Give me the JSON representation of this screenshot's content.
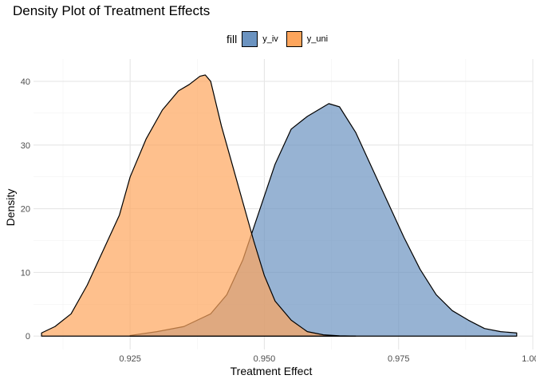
{
  "chart_data": {
    "type": "area",
    "title": "Density Plot of Treatment Effects",
    "xlabel": "Treatment Effect",
    "ylabel": "Density",
    "xlim": [
      0.907,
      1.0
    ],
    "ylim": [
      -2.1,
      43.5
    ],
    "x_ticks": [
      0.925,
      0.95,
      0.975,
      1.0
    ],
    "x_tick_labels": [
      "0.925",
      "0.950",
      "0.975",
      "1.000"
    ],
    "y_ticks": [
      0,
      10,
      20,
      30,
      40
    ],
    "y_tick_labels": [
      "0",
      "10",
      "20",
      "30",
      "40"
    ],
    "legend": {
      "title": "fill",
      "position": "top"
    },
    "grid": true,
    "series": [
      {
        "name": "y_iv",
        "color": "#6b93c0",
        "x": [
          0.925,
          0.93,
          0.935,
          0.94,
          0.943,
          0.946,
          0.949,
          0.952,
          0.955,
          0.958,
          0.96,
          0.962,
          0.964,
          0.967,
          0.97,
          0.973,
          0.976,
          0.979,
          0.982,
          0.985,
          0.988,
          0.991,
          0.994,
          0.997
        ],
        "values": [
          0.1,
          0.7,
          1.5,
          3.5,
          6.5,
          12.0,
          19.5,
          27.0,
          32.5,
          34.5,
          35.5,
          36.5,
          36.0,
          32.0,
          26.5,
          21.0,
          15.5,
          10.5,
          6.5,
          4.0,
          2.5,
          1.2,
          0.7,
          0.5
        ]
      },
      {
        "name": "y_uni",
        "color": "#fda55c",
        "x": [
          0.9085,
          0.911,
          0.914,
          0.917,
          0.92,
          0.923,
          0.925,
          0.928,
          0.931,
          0.934,
          0.936,
          0.938,
          0.939,
          0.94,
          0.942,
          0.944,
          0.946,
          0.948,
          0.95,
          0.952,
          0.955,
          0.958,
          0.961,
          0.964,
          0.967
        ],
        "values": [
          0.5,
          1.5,
          3.5,
          8.0,
          13.5,
          19.0,
          25.0,
          31.0,
          35.5,
          38.5,
          39.5,
          40.8,
          41.0,
          40.0,
          33.0,
          27.0,
          21.0,
          15.0,
          9.5,
          5.5,
          2.5,
          0.7,
          0.2,
          0.05,
          0.0
        ]
      }
    ]
  }
}
